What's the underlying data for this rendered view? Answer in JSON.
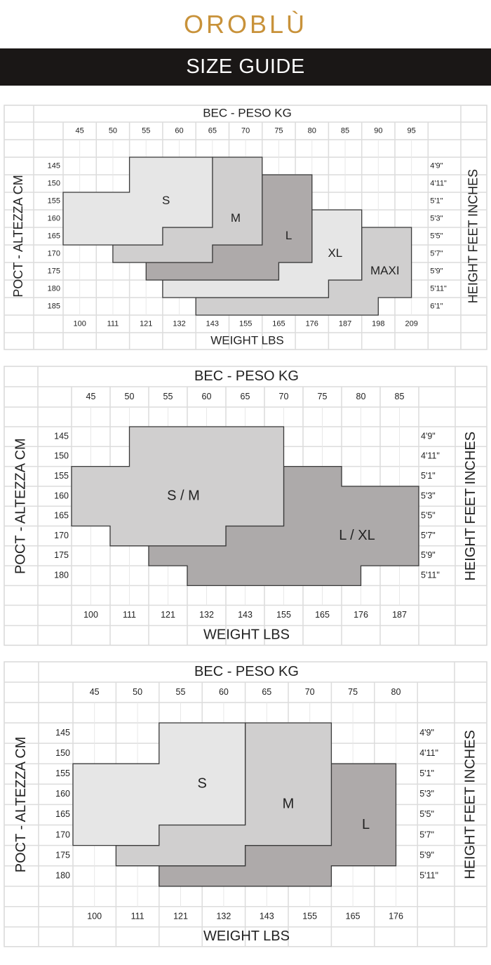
{
  "header": {
    "logo": "OROBLÙ",
    "title": "SIZE GUIDE",
    "logo_color": "#c8923a",
    "band_color": "#1a1716"
  },
  "chart_data": [
    {
      "type": "table",
      "title": "BEC - PESO KG",
      "xlabel": "WEIGHT LBS",
      "ylabel": "POCT - ALTEZZA CM",
      "ylabel_right": "HEIGHT FEET INCHES",
      "kg_ticks": [
        "45",
        "50",
        "55",
        "60",
        "65",
        "70",
        "75",
        "80",
        "85",
        "90",
        "95"
      ],
      "lbs_ticks": [
        "100",
        "111",
        "121",
        "132",
        "143",
        "155",
        "165",
        "176",
        "187",
        "198",
        "209"
      ],
      "cm_ticks": [
        "145",
        "150",
        "155",
        "160",
        "165",
        "170",
        "175",
        "180",
        "185"
      ],
      "ft_ticks": [
        "4'9\"",
        "4'11\"",
        "5'1\"",
        "5'3\"",
        "5'5\"",
        "5'7\"",
        "5'9\"",
        "5'11\"",
        "6'1\""
      ],
      "grid": true,
      "regions": [
        {
          "label": "MAXI",
          "color": "#d0cfcf",
          "label_at": [
            91,
            175
          ],
          "points": [
            [
              87.5,
              162.5
            ],
            [
              95,
              162.5
            ],
            [
              95,
              182.5
            ],
            [
              90,
              182.5
            ],
            [
              90,
              187.5
            ],
            [
              62.5,
              187.5
            ],
            [
              62.5,
              182.5
            ],
            [
              82.5,
              182.5
            ],
            [
              82.5,
              177.5
            ],
            [
              87.5,
              177.5
            ]
          ]
        },
        {
          "label": "XL",
          "color": "#e6e6e6",
          "label_at": [
            83.5,
            170
          ],
          "points": [
            [
              80,
              157.5
            ],
            [
              87.5,
              157.5
            ],
            [
              87.5,
              177.5
            ],
            [
              82.5,
              177.5
            ],
            [
              82.5,
              182.5
            ],
            [
              57.5,
              182.5
            ],
            [
              57.5,
              177.5
            ],
            [
              75,
              177.5
            ],
            [
              75,
              172.5
            ],
            [
              80,
              172.5
            ]
          ]
        },
        {
          "label": "L",
          "color": "#aeaaaa",
          "label_at": [
            76.5,
            165
          ],
          "points": [
            [
              72.5,
              147.5
            ],
            [
              80,
              147.5
            ],
            [
              80,
              172.5
            ],
            [
              75,
              172.5
            ],
            [
              75,
              177.5
            ],
            [
              55,
              177.5
            ],
            [
              55,
              172.5
            ],
            [
              65,
              172.5
            ],
            [
              65,
              167.5
            ],
            [
              72.5,
              167.5
            ]
          ]
        },
        {
          "label": "M",
          "color": "#d0cfcf",
          "label_at": [
            68.5,
            160
          ],
          "points": [
            [
              65,
              142.5
            ],
            [
              72.5,
              142.5
            ],
            [
              72.5,
              167.5
            ],
            [
              65,
              167.5
            ],
            [
              65,
              172.5
            ],
            [
              50,
              172.5
            ],
            [
              50,
              167.5
            ],
            [
              57.5,
              167.5
            ],
            [
              57.5,
              162.5
            ],
            [
              65,
              162.5
            ]
          ]
        },
        {
          "label": "S",
          "color": "#e6e6e6",
          "label_at": [
            58,
            155
          ],
          "points": [
            [
              52.5,
              142.5
            ],
            [
              65,
              142.5
            ],
            [
              65,
              162.5
            ],
            [
              57.5,
              162.5
            ],
            [
              57.5,
              167.5
            ],
            [
              42.5,
              167.5
            ],
            [
              42.5,
              152.5
            ],
            [
              52.5,
              152.5
            ]
          ]
        }
      ]
    },
    {
      "type": "table",
      "title": "BEC - PESO KG",
      "xlabel": "WEIGHT LBS",
      "ylabel": "POCT - ALTEZZA CM",
      "ylabel_right": "HEIGHT FEET INCHES",
      "kg_ticks": [
        "45",
        "50",
        "55",
        "60",
        "65",
        "70",
        "75",
        "80",
        "85"
      ],
      "lbs_ticks": [
        "100",
        "111",
        "121",
        "132",
        "143",
        "155",
        "165",
        "176",
        "187"
      ],
      "cm_ticks": [
        "145",
        "150",
        "155",
        "160",
        "165",
        "170",
        "175",
        "180"
      ],
      "ft_ticks": [
        "4'9\"",
        "4'11\"",
        "5'1\"",
        "5'3\"",
        "5'5\"",
        "5'7\"",
        "5'9\"",
        "5'11\""
      ],
      "grid": true,
      "regions": [
        {
          "label": "L / XL",
          "color": "#adaaaa",
          "label_at": [
            79.5,
            170
          ],
          "points": [
            [
              70,
              152.5
            ],
            [
              77.5,
              152.5
            ],
            [
              77.5,
              157.5
            ],
            [
              87.5,
              157.5
            ],
            [
              87.5,
              177.5
            ],
            [
              80,
              177.5
            ],
            [
              80,
              182.5
            ],
            [
              57.5,
              182.5
            ],
            [
              57.5,
              177.5
            ],
            [
              52.5,
              177.5
            ],
            [
              52.5,
              172.5
            ],
            [
              62.5,
              172.5
            ],
            [
              62.5,
              167.5
            ],
            [
              70,
              167.5
            ]
          ]
        },
        {
          "label": "S / M",
          "color": "#d0cfcf",
          "label_at": [
            57,
            160
          ],
          "points": [
            [
              50,
              142.5
            ],
            [
              70,
              142.5
            ],
            [
              70,
              167.5
            ],
            [
              62.5,
              167.5
            ],
            [
              62.5,
              172.5
            ],
            [
              47.5,
              172.5
            ],
            [
              47.5,
              167.5
            ],
            [
              42.5,
              167.5
            ],
            [
              42.5,
              152.5
            ],
            [
              50,
              152.5
            ]
          ]
        }
      ]
    },
    {
      "type": "table",
      "title": "BEC - PESO KG",
      "xlabel": "WEIGHT LBS",
      "ylabel": "POCT - ALTEZZA CM",
      "ylabel_right": "HEIGHT FEET INCHES",
      "kg_ticks": [
        "45",
        "50",
        "55",
        "60",
        "65",
        "70",
        "75",
        "80"
      ],
      "lbs_ticks": [
        "100",
        "111",
        "121",
        "132",
        "143",
        "155",
        "165",
        "176"
      ],
      "cm_ticks": [
        "145",
        "150",
        "155",
        "160",
        "165",
        "170",
        "175",
        "180"
      ],
      "ft_ticks": [
        "4'9\"",
        "4'11\"",
        "5'1\"",
        "5'3\"",
        "5'5\"",
        "5'7\"",
        "5'9\"",
        "5'11\""
      ],
      "grid": true,
      "regions": [
        {
          "label": "L",
          "color": "#aeaaaa",
          "label_at": [
            76.5,
            167.5
          ],
          "points": [
            [
              72.5,
              152.5
            ],
            [
              80,
              152.5
            ],
            [
              80,
              177.5
            ],
            [
              72.5,
              177.5
            ],
            [
              72.5,
              182.5
            ],
            [
              52.5,
              182.5
            ],
            [
              52.5,
              177.5
            ],
            [
              62.5,
              177.5
            ],
            [
              62.5,
              172.5
            ],
            [
              72.5,
              172.5
            ]
          ]
        },
        {
          "label": "M",
          "color": "#d0cfcf",
          "label_at": [
            67.5,
            162.5
          ],
          "points": [
            [
              62.5,
              142.5
            ],
            [
              72.5,
              142.5
            ],
            [
              72.5,
              172.5
            ],
            [
              62.5,
              172.5
            ],
            [
              62.5,
              177.5
            ],
            [
              47.5,
              177.5
            ],
            [
              47.5,
              172.5
            ],
            [
              52.5,
              172.5
            ],
            [
              52.5,
              167.5
            ],
            [
              62.5,
              167.5
            ]
          ]
        },
        {
          "label": "S",
          "color": "#e6e6e6",
          "label_at": [
            57.5,
            157.5
          ],
          "points": [
            [
              52.5,
              142.5
            ],
            [
              62.5,
              142.5
            ],
            [
              62.5,
              167.5
            ],
            [
              52.5,
              167.5
            ],
            [
              52.5,
              172.5
            ],
            [
              42.5,
              172.5
            ],
            [
              42.5,
              152.5
            ],
            [
              52.5,
              152.5
            ]
          ]
        }
      ]
    }
  ]
}
